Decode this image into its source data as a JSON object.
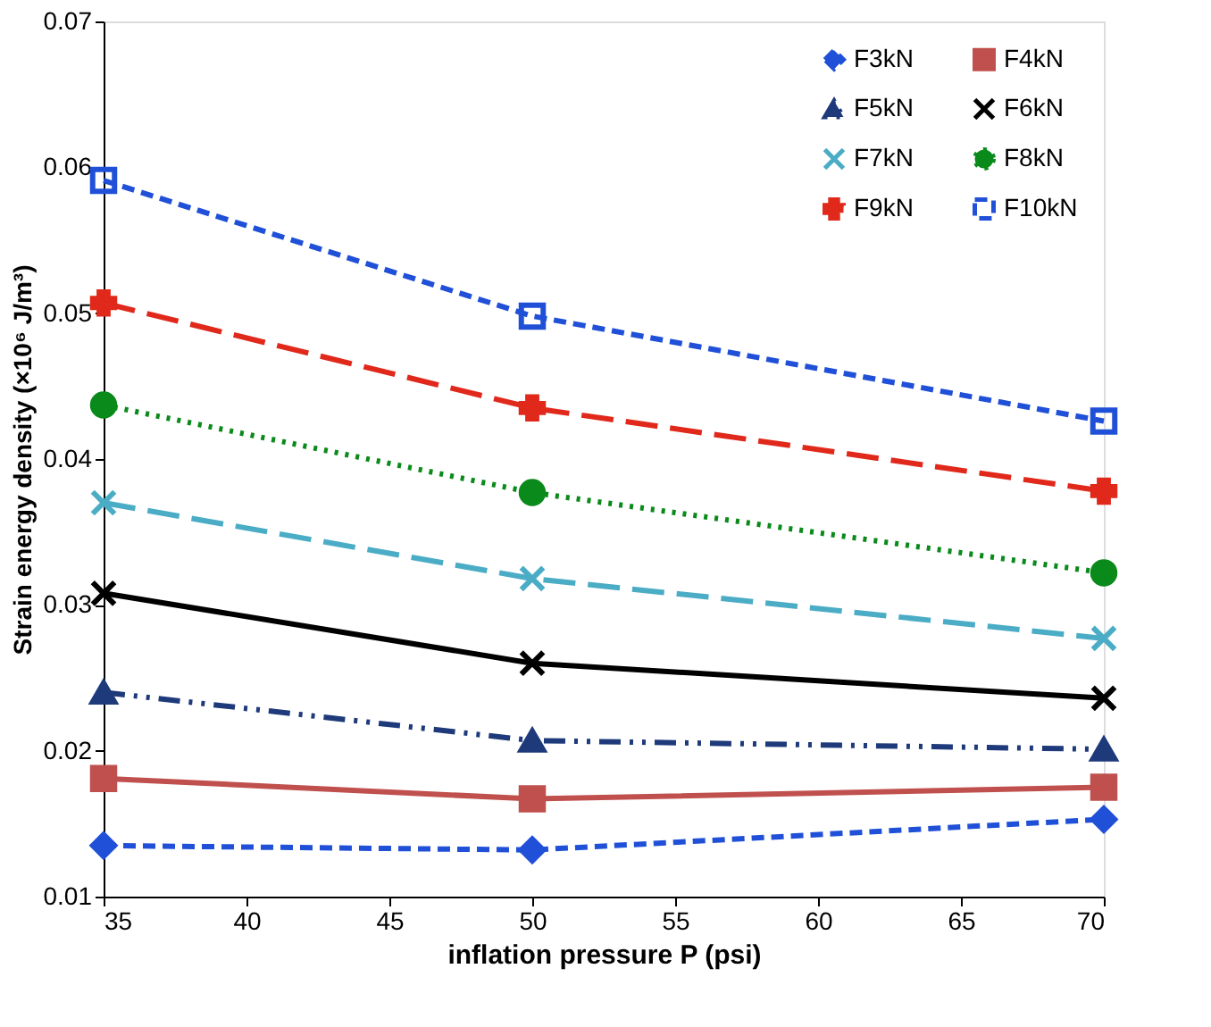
{
  "chart_data": {
    "type": "line",
    "xlabel": "inflation pressure P (psi)",
    "ylabel": "Strain energy density (×10⁶ J/m³)",
    "x": [
      35,
      50,
      70
    ],
    "series": [
      {
        "name": "F3kN",
        "color": "#2050d8",
        "marker": "diamond",
        "line_style": "dashed",
        "values": [
          0.0135,
          0.0132,
          0.0153
        ]
      },
      {
        "name": "F4kN",
        "color": "#c0504d",
        "marker": "square",
        "line_style": "solid",
        "values": [
          0.0181,
          0.0167,
          0.0175
        ]
      },
      {
        "name": "F5kN",
        "color": "#1f3a7a",
        "marker": "triangle",
        "line_style": "dashdot",
        "values": [
          0.024,
          0.0207,
          0.0201
        ]
      },
      {
        "name": "F6kN",
        "color": "#000000",
        "marker": "cross",
        "line_style": "solid",
        "values": [
          0.0308,
          0.026,
          0.0236
        ]
      },
      {
        "name": "F7kN",
        "color": "#4bacc6",
        "marker": "cross",
        "line_style": "longdash",
        "values": [
          0.037,
          0.0318,
          0.0277
        ]
      },
      {
        "name": "F8kN",
        "color": "#0a8a1a",
        "marker": "circle",
        "line_style": "dotted",
        "values": [
          0.0437,
          0.0377,
          0.0322
        ]
      },
      {
        "name": "F9kN",
        "color": "#e0281b",
        "marker": "plus",
        "line_style": "longdash",
        "values": [
          0.0507,
          0.0435,
          0.0378
        ]
      },
      {
        "name": "F10kN",
        "color": "#2050d8",
        "marker": "square-open",
        "line_style": "dashed",
        "values": [
          0.0591,
          0.0498,
          0.0426
        ]
      }
    ],
    "xlim": [
      35,
      70
    ],
    "xticks": [
      35,
      40,
      45,
      50,
      55,
      60,
      65,
      70
    ],
    "ylim": [
      0.01,
      0.07
    ],
    "yticks": [
      0.01,
      0.02,
      0.03,
      0.04,
      0.05,
      0.06,
      0.07
    ],
    "grid": false,
    "legend": "top right"
  }
}
